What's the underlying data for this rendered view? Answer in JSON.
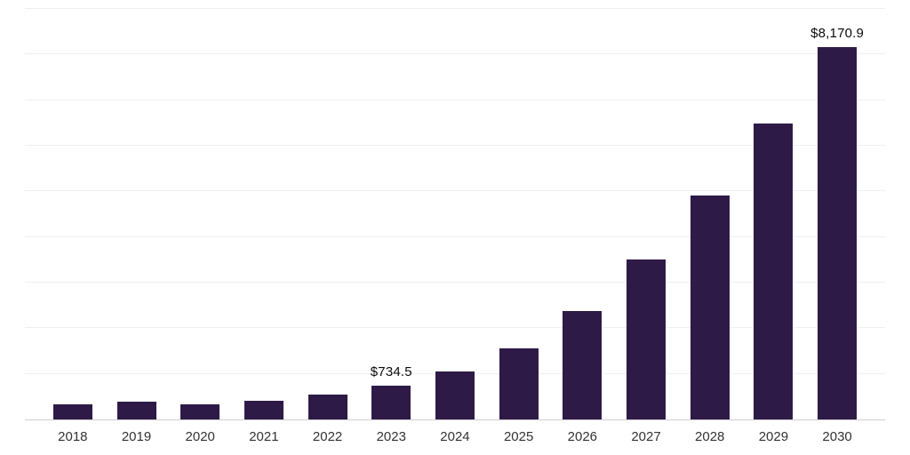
{
  "chart_data": {
    "type": "bar",
    "title": "",
    "xlabel": "",
    "ylabel": "",
    "categories": [
      "2018",
      "2019",
      "2020",
      "2021",
      "2022",
      "2023",
      "2024",
      "2025",
      "2026",
      "2027",
      "2028",
      "2029",
      "2030"
    ],
    "values": [
      325,
      390,
      330,
      405,
      555,
      734.5,
      1050,
      1550,
      2370,
      3500,
      4900,
      6490,
      8170.9
    ],
    "data_labels": [
      "",
      "",
      "",
      "",
      "",
      "$734.5",
      "",
      "",
      "",
      "",
      "",
      "",
      "$8,170.9"
    ],
    "ylim": [
      0,
      9000
    ],
    "grid_step": 1000,
    "grid": true,
    "legend": false,
    "colors": {
      "bar": "#2e1a47",
      "gridline": "#efefef",
      "axis_line": "#cfcfcf",
      "tick_label": "#333333",
      "value_label": "#0a0a0a",
      "background": "#ffffff"
    }
  }
}
